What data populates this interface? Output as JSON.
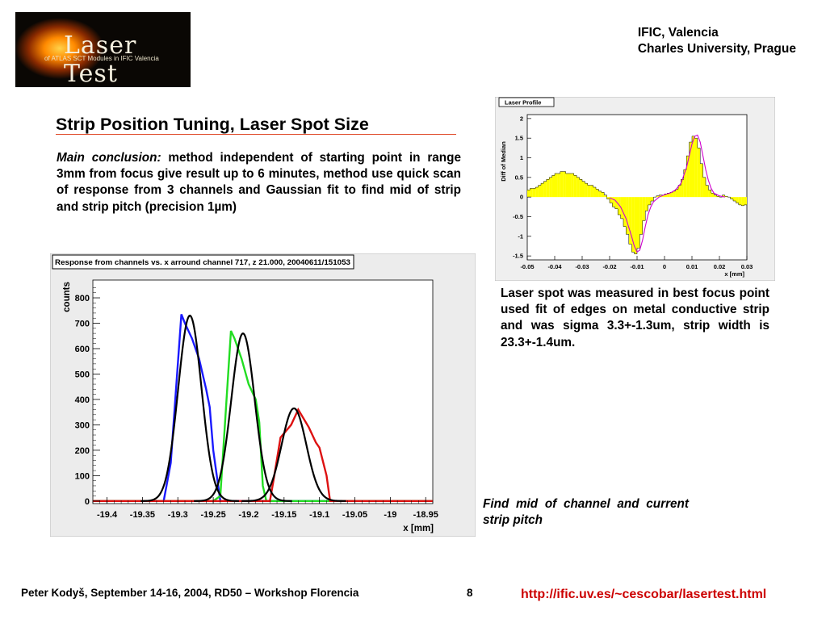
{
  "logo": {
    "title": "Laser Test",
    "subtitle": "of ATLAS SCT Modules in IFIC Valencia"
  },
  "institutions": {
    "line1": "IFIC, Valencia",
    "line2": "Charles University, Prague"
  },
  "slide": {
    "title": "Strip Position Tuning, Laser Spot Size",
    "conclusion_label": "Main conclusion:",
    "conclusion_text": " method independent of starting point in range 3mm from focus give result up to 6 minutes, method use quick scan of response from 3 channels and Gaussian fit to find mid of strip and strip pitch (precision 1µm)",
    "spot_text": "Laser spot was measured in best focus point used fit of edges on metal conductive strip and was sigma 3.3+-1.3um, strip width is 23.3+-1.4um.",
    "find_text": "Find mid of channel and current strip pitch"
  },
  "footer": {
    "author": "Peter Kodyš, September 14-16, 2004, RD50 – Workshop Florencia",
    "page": "8",
    "url": "http://ific.uv.es/~cescobar/lasertest.html"
  },
  "chart_data": [
    {
      "type": "line",
      "title": "Laser Profile",
      "xlabel": "x [mm]",
      "ylabel": "Diff of Median",
      "xlim": [
        -0.05,
        0.03
      ],
      "ylim": [
        -1.6,
        2.1
      ],
      "xticks": [
        "-0.05",
        "-0.04",
        "-0.03",
        "-0.02",
        "-0.01",
        "0",
        "0.01",
        "0.02",
        "0.03"
      ],
      "yticks": [
        "-1.5",
        "-1",
        "-0.5",
        "0",
        "0.5",
        "1",
        "1.5",
        "2"
      ],
      "histogram": {
        "x": [
          -0.0495,
          -0.0485,
          -0.0475,
          -0.0465,
          -0.0455,
          -0.0445,
          -0.0435,
          -0.0425,
          -0.0415,
          -0.0405,
          -0.0395,
          -0.0385,
          -0.0375,
          -0.0365,
          -0.0355,
          -0.0345,
          -0.0335,
          -0.0325,
          -0.0315,
          -0.0305,
          -0.0295,
          -0.0285,
          -0.0275,
          -0.0265,
          -0.0255,
          -0.0245,
          -0.0235,
          -0.0225,
          -0.0215,
          -0.0205,
          -0.0195,
          -0.0185,
          -0.0175,
          -0.0165,
          -0.0155,
          -0.0145,
          -0.0135,
          -0.0125,
          -0.0115,
          -0.0105,
          -0.0095,
          -0.0085,
          -0.0075,
          -0.0065,
          -0.0055,
          -0.0045,
          -0.0035,
          -0.0025,
          -0.0015,
          -0.0005,
          0.0005,
          0.0015,
          0.0025,
          0.0035,
          0.0045,
          0.0055,
          0.0065,
          0.0075,
          0.0085,
          0.0095,
          0.0105,
          0.0115,
          0.0125,
          0.0135,
          0.0145,
          0.0155,
          0.0165,
          0.0175,
          0.0185,
          0.0195,
          0.0205,
          0.0215,
          0.0225,
          0.0235,
          0.0245,
          0.0255,
          0.0265,
          0.0275,
          0.0285,
          0.0295
        ],
        "y": [
          0.18,
          0.22,
          0.22,
          0.25,
          0.3,
          0.35,
          0.4,
          0.45,
          0.5,
          0.55,
          0.6,
          0.6,
          0.65,
          0.65,
          0.6,
          0.6,
          0.6,
          0.55,
          0.5,
          0.45,
          0.4,
          0.35,
          0.3,
          0.3,
          0.25,
          0.2,
          0.15,
          0.12,
          0.05,
          -0.05,
          -0.15,
          -0.25,
          -0.3,
          -0.45,
          -0.55,
          -0.75,
          -0.95,
          -1.2,
          -1.4,
          -1.45,
          -1.3,
          -0.95,
          -0.6,
          -0.35,
          -0.2,
          -0.1,
          0.0,
          0.03,
          0.05,
          0.05,
          0.08,
          0.1,
          0.12,
          0.15,
          0.2,
          0.3,
          0.45,
          0.7,
          1.05,
          1.4,
          1.55,
          1.5,
          1.25,
          0.85,
          0.5,
          0.3,
          0.18,
          0.1,
          0.05,
          0.02,
          0.0,
          0.05,
          0.02,
          0.0,
          -0.05,
          -0.1,
          -0.15,
          -0.2,
          -0.22,
          -0.2
        ]
      },
      "fit": {
        "x": [
          -0.045,
          -0.04,
          -0.035,
          -0.03,
          -0.025,
          -0.02,
          -0.018,
          -0.016,
          -0.014,
          -0.012,
          -0.011,
          -0.01,
          -0.009,
          -0.008,
          -0.007,
          -0.006,
          -0.005,
          -0.004,
          -0.002,
          0.0,
          0.002,
          0.004,
          0.006,
          0.008,
          0.009,
          0.01,
          0.011,
          0.012,
          0.013,
          0.014,
          0.015,
          0.016,
          0.017,
          0.018,
          0.02,
          0.022
        ],
        "y": [
          null,
          null,
          null,
          null,
          null,
          -0.02,
          -0.08,
          -0.25,
          -0.55,
          -1.0,
          -1.25,
          -1.4,
          -1.35,
          -1.1,
          -0.75,
          -0.45,
          -0.25,
          -0.12,
          0.0,
          0.06,
          0.1,
          0.18,
          0.35,
          0.75,
          1.05,
          1.35,
          1.55,
          1.58,
          1.4,
          1.05,
          0.7,
          0.42,
          0.22,
          0.1,
          0.03,
          0.0
        ]
      }
    },
    {
      "type": "line",
      "title": "Response from channels vs. x arround channel 717, z 21.000, 20040611/151053",
      "xlabel": "x [mm]",
      "ylabel": "counts",
      "xlim": [
        -19.42,
        -18.94
      ],
      "ylim": [
        -10,
        870
      ],
      "xticks": [
        "-19.4",
        "-19.35",
        "-19.3",
        "-19.25",
        "-19.2",
        "-19.15",
        "-19.1",
        "-19.05",
        "-19",
        "-18.95"
      ],
      "yticks": [
        "0",
        "100",
        "200",
        "300",
        "400",
        "500",
        "600",
        "700",
        "800"
      ],
      "series": [
        {
          "color": "#1a1aff",
          "x": [
            -19.42,
            -19.32,
            -19.31,
            -19.295,
            -19.29,
            -19.28,
            -19.27,
            -19.26,
            -19.255,
            -19.25,
            -19.24,
            -18.94
          ],
          "y": [
            0,
            0,
            150,
            735,
            700,
            640,
            560,
            440,
            370,
            200,
            0,
            0
          ]
        },
        {
          "color": "#22dd22",
          "x": [
            -19.42,
            -19.25,
            -19.24,
            -19.225,
            -19.22,
            -19.21,
            -19.2,
            -19.19,
            -19.185,
            -19.18,
            -19.175,
            -18.94
          ],
          "y": [
            0,
            0,
            20,
            670,
            640,
            560,
            460,
            400,
            310,
            60,
            0,
            0
          ]
        },
        {
          "color": "#dd1111",
          "x": [
            -19.42,
            -19.17,
            -19.165,
            -19.155,
            -19.14,
            -19.13,
            -19.115,
            -19.105,
            -19.1,
            -19.09,
            -19.085,
            -18.94
          ],
          "y": [
            0,
            0,
            80,
            250,
            300,
            360,
            290,
            230,
            210,
            100,
            0,
            0
          ]
        },
        {
          "color": "#000000",
          "gauss": {
            "mean": -19.283,
            "sigma": 0.0165,
            "amp": 730
          }
        },
        {
          "color": "#000000",
          "gauss": {
            "mean": -19.208,
            "sigma": 0.0165,
            "amp": 660
          }
        },
        {
          "color": "#000000",
          "gauss": {
            "mean": -19.136,
            "sigma": 0.0175,
            "amp": 365
          }
        }
      ]
    }
  ]
}
